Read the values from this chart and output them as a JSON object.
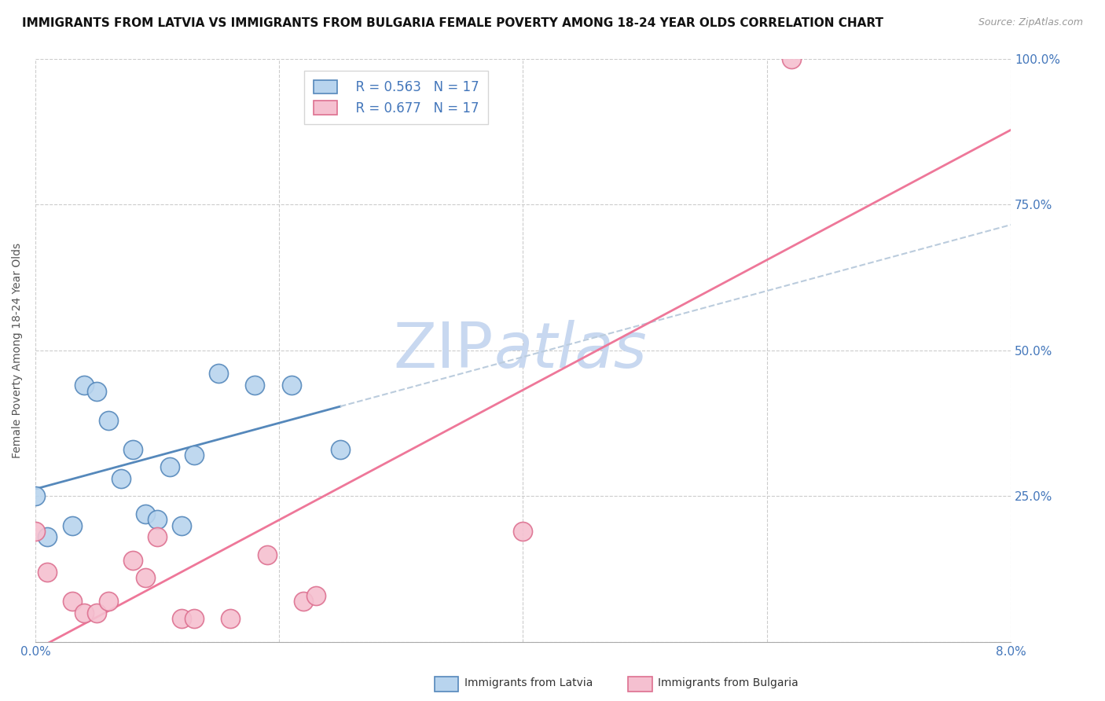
{
  "title": "IMMIGRANTS FROM LATVIA VS IMMIGRANTS FROM BULGARIA FEMALE POVERTY AMONG 18-24 YEAR OLDS CORRELATION CHART",
  "source": "Source: ZipAtlas.com",
  "ylabel_label": "Female Poverty Among 18-24 Year Olds",
  "x_min": 0.0,
  "x_max": 0.08,
  "y_min": 0.0,
  "y_max": 1.0,
  "x_ticks": [
    0.0,
    0.02,
    0.04,
    0.06,
    0.08
  ],
  "x_tick_labels": [
    "0.0%",
    "",
    "",
    "",
    "8.0%"
  ],
  "y_ticks": [
    0.0,
    0.25,
    0.5,
    0.75,
    1.0
  ],
  "y_tick_labels": [
    "",
    "25.0%",
    "50.0%",
    "75.0%",
    "100.0%"
  ],
  "latvia_color": "#b8d4ee",
  "latvia_edge_color": "#5588bb",
  "bulgaria_color": "#f5c0d0",
  "bulgaria_edge_color": "#dd7090",
  "trend_latvia_color": "#5588bb",
  "trend_latvia_ext_color": "#bbccdd",
  "trend_bulgaria_color": "#ee7799",
  "legend_r_latvia": "R = 0.563",
  "legend_n_latvia": "N = 17",
  "legend_r_bulgaria": "R = 0.677",
  "legend_n_bulgaria": "N = 17",
  "watermark_zip": "ZIP",
  "watermark_atlas": "atlas",
  "watermark_color": "#c8d8f0",
  "latvia_x": [
    0.0,
    0.001,
    0.003,
    0.004,
    0.005,
    0.006,
    0.007,
    0.008,
    0.009,
    0.01,
    0.011,
    0.012,
    0.013,
    0.015,
    0.018,
    0.021,
    0.025
  ],
  "latvia_y": [
    0.25,
    0.18,
    0.2,
    0.44,
    0.43,
    0.38,
    0.28,
    0.33,
    0.22,
    0.21,
    0.3,
    0.2,
    0.32,
    0.46,
    0.44,
    0.44,
    0.33
  ],
  "bulgaria_x": [
    0.0,
    0.001,
    0.003,
    0.004,
    0.005,
    0.006,
    0.008,
    0.009,
    0.01,
    0.012,
    0.013,
    0.016,
    0.019,
    0.022,
    0.023,
    0.04,
    0.062
  ],
  "bulgaria_y": [
    0.19,
    0.12,
    0.07,
    0.05,
    0.05,
    0.07,
    0.14,
    0.11,
    0.18,
    0.04,
    0.04,
    0.04,
    0.15,
    0.07,
    0.08,
    0.19,
    1.0
  ],
  "background_color": "#ffffff",
  "grid_color": "#cccccc",
  "axis_tick_color": "#4477bb",
  "title_fontsize": 11,
  "source_fontsize": 9,
  "axis_label_fontsize": 10,
  "tick_fontsize": 11,
  "legend_fontsize": 12
}
